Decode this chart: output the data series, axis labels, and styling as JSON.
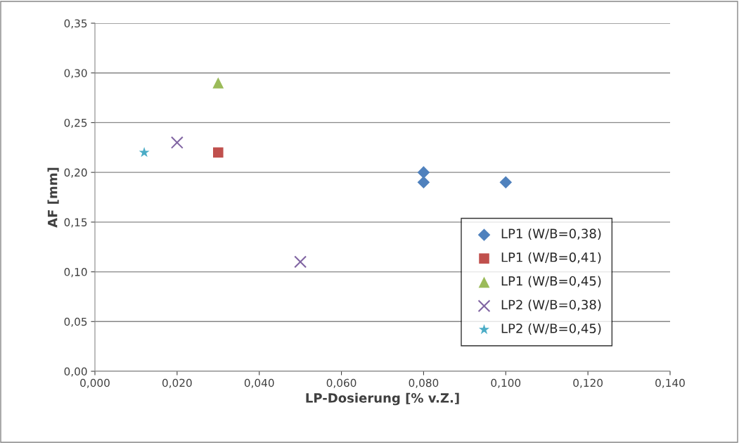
{
  "chart_data": {
    "type": "scatter",
    "xlabel": "LP-Dosierung [% v.Z.]",
    "ylabel": "AF [mm]",
    "xlim": [
      0,
      0.14
    ],
    "ylim": [
      0,
      0.35
    ],
    "xticks": [
      {
        "value": 0,
        "label": "0,000"
      },
      {
        "value": 0.02,
        "label": "0,020"
      },
      {
        "value": 0.04,
        "label": "0,040"
      },
      {
        "value": 0.06,
        "label": "0,060"
      },
      {
        "value": 0.08,
        "label": "0,080"
      },
      {
        "value": 0.1,
        "label": "0,100"
      },
      {
        "value": 0.12,
        "label": "0,120"
      },
      {
        "value": 0.14,
        "label": "0,140"
      }
    ],
    "yticks": [
      {
        "value": 0,
        "label": "0,00"
      },
      {
        "value": 0.05,
        "label": "0,05"
      },
      {
        "value": 0.1,
        "label": "0,10"
      },
      {
        "value": 0.15,
        "label": "0,15"
      },
      {
        "value": 0.2,
        "label": "0,20"
      },
      {
        "value": 0.25,
        "label": "0,25"
      },
      {
        "value": 0.3,
        "label": "0,30"
      },
      {
        "value": 0.35,
        "label": "0,35"
      }
    ],
    "grid": "y",
    "legend": "right",
    "series": [
      {
        "name": "LP1 (W/B=0,38)",
        "color": "#4f81bd",
        "marker": "diamond",
        "x": [
          0.08,
          0.08,
          0.1
        ],
        "values": [
          0.2,
          0.19,
          0.19
        ]
      },
      {
        "name": "LP1 (W/B=0,41)",
        "color": "#c0504d",
        "marker": "square",
        "x": [
          0.03
        ],
        "values": [
          0.22
        ]
      },
      {
        "name": "LP1 (W/B=0,45)",
        "color": "#9bbb59",
        "marker": "triangle",
        "x": [
          0.03
        ],
        "values": [
          0.29
        ]
      },
      {
        "name": "LP2 (W/B=0,38)",
        "color": "#8064a2",
        "marker": "cross",
        "x": [
          0.02,
          0.05
        ],
        "values": [
          0.23,
          0.11
        ]
      },
      {
        "name": "LP2 (W/B=0,45)",
        "color": "#4bacc6",
        "marker": "star",
        "x": [
          0.012
        ],
        "values": [
          0.22
        ]
      }
    ]
  }
}
